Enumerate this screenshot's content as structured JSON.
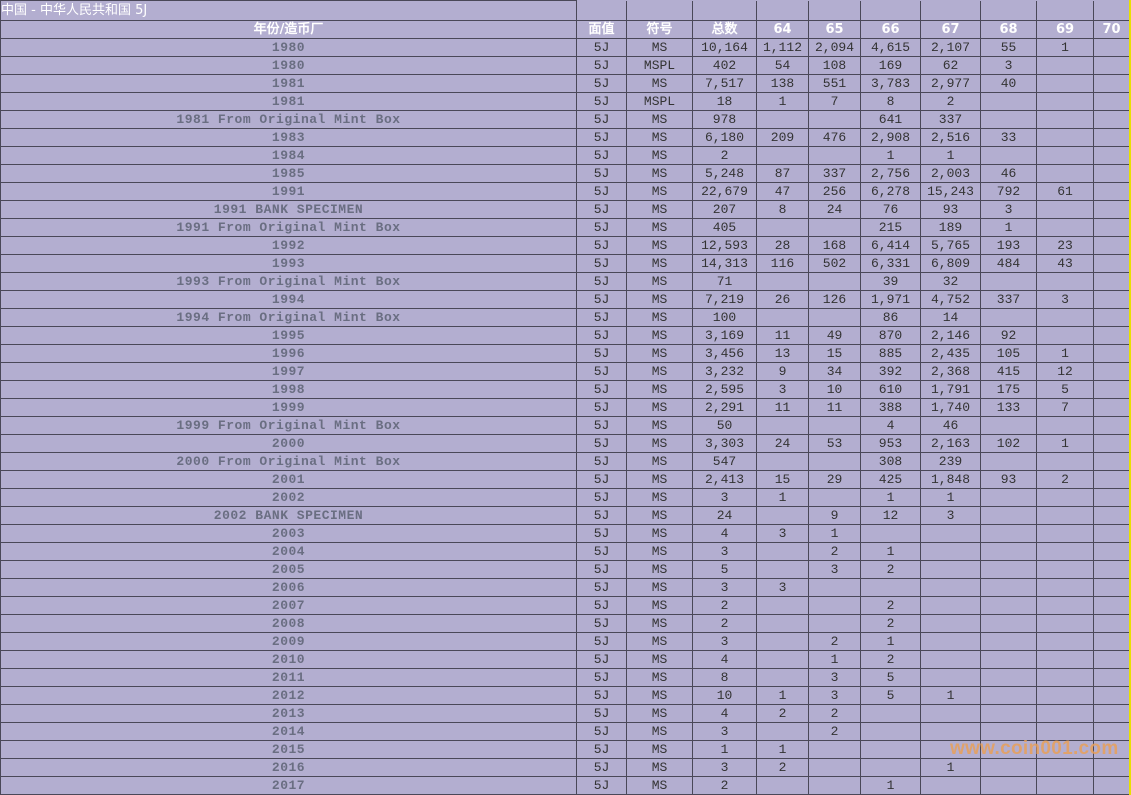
{
  "title": "中国 - 中华人民共和国 5J",
  "headers": [
    "年份/造币厂",
    "面值",
    "符号",
    "总数",
    "64",
    "65",
    "66",
    "67",
    "68",
    "69",
    "70"
  ],
  "rows": [
    [
      "1980",
      "5J",
      "MS",
      "10,164",
      "1,112",
      "2,094",
      "4,615",
      "2,107",
      "55",
      "1",
      ""
    ],
    [
      "1980",
      "5J",
      "MSPL",
      "402",
      "54",
      "108",
      "169",
      "62",
      "3",
      "",
      ""
    ],
    [
      "1981",
      "5J",
      "MS",
      "7,517",
      "138",
      "551",
      "3,783",
      "2,977",
      "40",
      "",
      ""
    ],
    [
      "1981",
      "5J",
      "MSPL",
      "18",
      "1",
      "7",
      "8",
      "2",
      "",
      "",
      ""
    ],
    [
      "1981 From Original Mint Box",
      "5J",
      "MS",
      "978",
      "",
      "",
      "641",
      "337",
      "",
      "",
      ""
    ],
    [
      "1983",
      "5J",
      "MS",
      "6,180",
      "209",
      "476",
      "2,908",
      "2,516",
      "33",
      "",
      ""
    ],
    [
      "1984",
      "5J",
      "MS",
      "2",
      "",
      "",
      "1",
      "1",
      "",
      "",
      ""
    ],
    [
      "1985",
      "5J",
      "MS",
      "5,248",
      "87",
      "337",
      "2,756",
      "2,003",
      "46",
      "",
      ""
    ],
    [
      "1991",
      "5J",
      "MS",
      "22,679",
      "47",
      "256",
      "6,278",
      "15,243",
      "792",
      "61",
      ""
    ],
    [
      "1991 BANK SPECIMEN",
      "5J",
      "MS",
      "207",
      "8",
      "24",
      "76",
      "93",
      "3",
      "",
      ""
    ],
    [
      "1991 From Original Mint Box",
      "5J",
      "MS",
      "405",
      "",
      "",
      "215",
      "189",
      "1",
      "",
      ""
    ],
    [
      "1992",
      "5J",
      "MS",
      "12,593",
      "28",
      "168",
      "6,414",
      "5,765",
      "193",
      "23",
      ""
    ],
    [
      "1993",
      "5J",
      "MS",
      "14,313",
      "116",
      "502",
      "6,331",
      "6,809",
      "484",
      "43",
      ""
    ],
    [
      "1993 From Original Mint Box",
      "5J",
      "MS",
      "71",
      "",
      "",
      "39",
      "32",
      "",
      "",
      ""
    ],
    [
      "1994",
      "5J",
      "MS",
      "7,219",
      "26",
      "126",
      "1,971",
      "4,752",
      "337",
      "3",
      ""
    ],
    [
      "1994 From Original Mint Box",
      "5J",
      "MS",
      "100",
      "",
      "",
      "86",
      "14",
      "",
      "",
      ""
    ],
    [
      "1995",
      "5J",
      "MS",
      "3,169",
      "11",
      "49",
      "870",
      "2,146",
      "92",
      "",
      ""
    ],
    [
      "1996",
      "5J",
      "MS",
      "3,456",
      "13",
      "15",
      "885",
      "2,435",
      "105",
      "1",
      ""
    ],
    [
      "1997",
      "5J",
      "MS",
      "3,232",
      "9",
      "34",
      "392",
      "2,368",
      "415",
      "12",
      ""
    ],
    [
      "1998",
      "5J",
      "MS",
      "2,595",
      "3",
      "10",
      "610",
      "1,791",
      "175",
      "5",
      ""
    ],
    [
      "1999",
      "5J",
      "MS",
      "2,291",
      "11",
      "11",
      "388",
      "1,740",
      "133",
      "7",
      ""
    ],
    [
      "1999 From Original Mint Box",
      "5J",
      "MS",
      "50",
      "",
      "",
      "4",
      "46",
      "",
      "",
      ""
    ],
    [
      "2000",
      "5J",
      "MS",
      "3,303",
      "24",
      "53",
      "953",
      "2,163",
      "102",
      "1",
      ""
    ],
    [
      "2000 From Original Mint Box",
      "5J",
      "MS",
      "547",
      "",
      "",
      "308",
      "239",
      "",
      "",
      ""
    ],
    [
      "2001",
      "5J",
      "MS",
      "2,413",
      "15",
      "29",
      "425",
      "1,848",
      "93",
      "2",
      ""
    ],
    [
      "2002",
      "5J",
      "MS",
      "3",
      "1",
      "",
      "1",
      "1",
      "",
      "",
      ""
    ],
    [
      "2002 BANK SPECIMEN",
      "5J",
      "MS",
      "24",
      "",
      "9",
      "12",
      "3",
      "",
      "",
      ""
    ],
    [
      "2003",
      "5J",
      "MS",
      "4",
      "3",
      "1",
      "",
      "",
      "",
      "",
      ""
    ],
    [
      "2004",
      "5J",
      "MS",
      "3",
      "",
      "2",
      "1",
      "",
      "",
      "",
      ""
    ],
    [
      "2005",
      "5J",
      "MS",
      "5",
      "",
      "3",
      "2",
      "",
      "",
      "",
      ""
    ],
    [
      "2006",
      "5J",
      "MS",
      "3",
      "3",
      "",
      "",
      "",
      "",
      "",
      ""
    ],
    [
      "2007",
      "5J",
      "MS",
      "2",
      "",
      "",
      "2",
      "",
      "",
      "",
      ""
    ],
    [
      "2008",
      "5J",
      "MS",
      "2",
      "",
      "",
      "2",
      "",
      "",
      "",
      ""
    ],
    [
      "2009",
      "5J",
      "MS",
      "3",
      "",
      "2",
      "1",
      "",
      "",
      "",
      ""
    ],
    [
      "2010",
      "5J",
      "MS",
      "4",
      "",
      "1",
      "2",
      "",
      "",
      "",
      ""
    ],
    [
      "2011",
      "5J",
      "MS",
      "8",
      "",
      "3",
      "5",
      "",
      "",
      "",
      ""
    ],
    [
      "2012",
      "5J",
      "MS",
      "10",
      "1",
      "3",
      "5",
      "1",
      "",
      "",
      ""
    ],
    [
      "2013",
      "5J",
      "MS",
      "4",
      "2",
      "2",
      "",
      "",
      "",
      "",
      ""
    ],
    [
      "2014",
      "5J",
      "MS",
      "3",
      "",
      "2",
      "",
      "",
      "",
      "",
      ""
    ],
    [
      "2015",
      "5J",
      "MS",
      "1",
      "1",
      "",
      "",
      "",
      "",
      "",
      ""
    ],
    [
      "2016",
      "5J",
      "MS",
      "3",
      "2",
      "",
      "",
      "1",
      "",
      "",
      ""
    ],
    [
      "2017",
      "5J",
      "MS",
      "2",
      "",
      "",
      "1",
      "",
      "",
      "",
      ""
    ]
  ],
  "watermark": "www.coin001.com",
  "colors": {
    "background": "#b3aed0",
    "grid": "#4a4858",
    "year_text": "#6a6e82",
    "header_text": "#ffffff",
    "watermark": "#e8a05a",
    "edge": "#e8e000"
  }
}
